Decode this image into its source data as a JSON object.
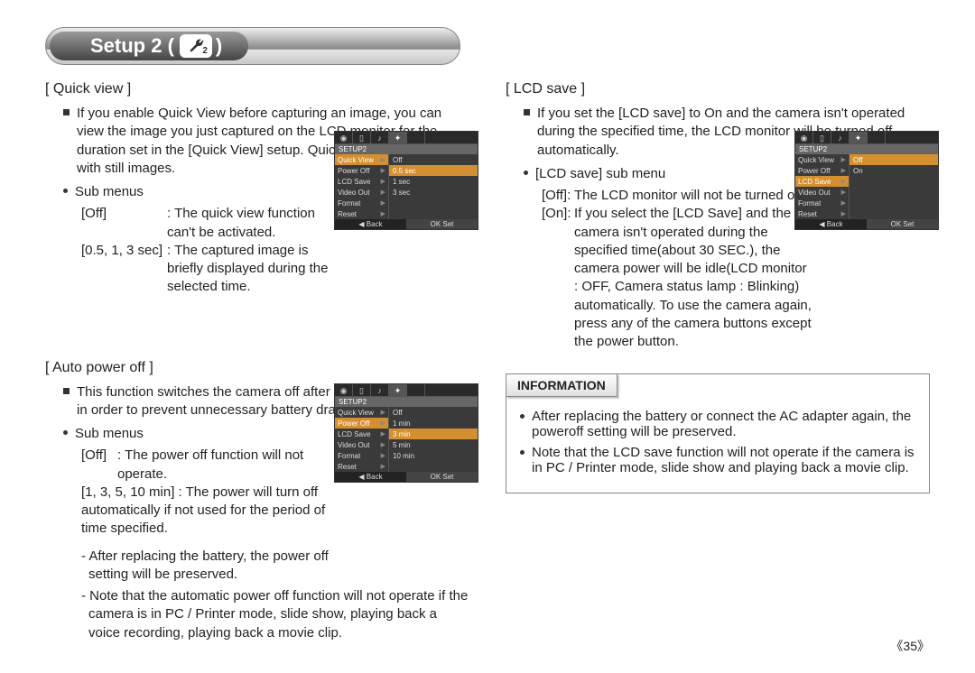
{
  "title": "Setup 2 (",
  "title_close": ")",
  "wrench_sub": "2",
  "page_num": "《35》",
  "left": {
    "quick_view": {
      "heading": "[ Quick view ]",
      "desc": "If you enable Quick View before capturing an image, you can view the image you just captured on the LCD monitor for the duration set in the [Quick View] setup. Quick view is possible only with still images.",
      "sub_label": "Sub menus",
      "off_k": "[Off]",
      "off_v": ": The quick view function can't be activated.",
      "sec_k": "[0.5, 1, 3 sec]",
      "sec_v": ": The captured image is briefly displayed during the selected time."
    },
    "auto_power": {
      "heading": "[ Auto power off ]",
      "desc": "This function switches the camera off after a set amount of time in order to prevent unnecessary battery drainage.",
      "sub_label": "Sub menus",
      "off_k": "[Off]",
      "off_v": ": The power off function will not operate.",
      "min_k_v": "[1, 3, 5, 10 min] : The power will turn off automatically if not used for the period of time specified.",
      "note1": "- After replacing the battery, the power off setting will be preserved.",
      "note2": "- Note that the automatic power off function will not operate if the camera is in PC / Printer mode, slide show, playing back a voice recording, playing back a movie clip."
    }
  },
  "right": {
    "lcd_save": {
      "heading": "[ LCD save ]",
      "desc": "If you set the [LCD save] to On and the camera isn't operated during the specified time, the LCD monitor will be turned off automatically.",
      "sub_label": "[LCD save] sub menu",
      "off_k": "[Off]:",
      "off_v": "The LCD monitor will not be turned off.",
      "on_k": "[On]:",
      "on_v": "If you select the [LCD Save] and the camera isn't operated during the specified time(about 30 SEC.), the camera power will be idle(LCD monitor : OFF, Camera status lamp : Blinking) automatically. To use the camera again, press any of the camera buttons except the power button."
    },
    "info": {
      "label": "INFORMATION",
      "b1": "After replacing the battery or connect the AC adapter again, the poweroff setting will be preserved.",
      "b2": "Note that the LCD save function will not operate if the camera is in PC / Printer mode, slide show and playing back a movie clip."
    }
  },
  "ss1": {
    "head": "SETUP2",
    "menu": [
      "Quick View",
      "Power Off",
      "LCD Save",
      "Video Out",
      "Format",
      "Reset"
    ],
    "opts": [
      "Off",
      "0.5 sec",
      "1 sec",
      "3 sec"
    ],
    "hl": 1,
    "foot_l": "◀   Back",
    "foot_r": "OK   Set"
  },
  "ss2": {
    "head": "SETUP2",
    "menu": [
      "Quick View",
      "Power Off",
      "LCD Save",
      "Video Out",
      "Format",
      "Reset"
    ],
    "opts": [
      "Off",
      "1 min",
      "3 min",
      "5 min",
      "10 min"
    ],
    "hl": 2,
    "foot_l": "◀   Back",
    "foot_r": "OK   Set"
  },
  "ss3": {
    "head": "SETUP2",
    "menu": [
      "Quick View",
      "Power Off",
      "LCD Save",
      "Video Out",
      "Format",
      "Reset"
    ],
    "opts": [
      "Off",
      "On"
    ],
    "hl": 0,
    "foot_l": "◀   Back",
    "foot_r": "OK   Set"
  }
}
